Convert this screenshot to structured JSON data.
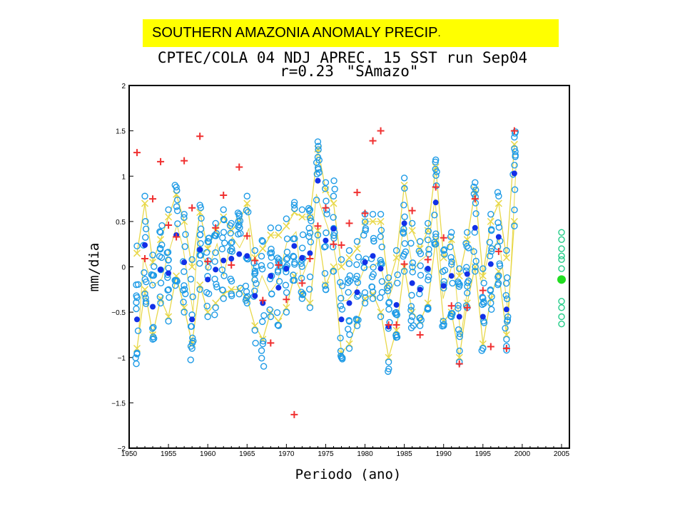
{
  "banner": {
    "text": "SOUTHERN AMAZONIA  ANOMALY PRECIP",
    "suffix": "."
  },
  "colors": {
    "banner_bg": "#ffff00",
    "members": "#1e9be6",
    "ensemble_mean": "#1230e8",
    "observed": "#f03030",
    "spread_lines": "#e8d84a",
    "forecast_members": "#22cc88",
    "forecast_mean": "#22dd22"
  },
  "chart_data": {
    "type": "scatter",
    "title": "CPTEC/COLA 04 NDJ APREC. 15 SST run Sep04",
    "subtitle_r": "r=0.23",
    "subtitle_region": "\"SAmazo\"",
    "xlabel": "Periodo (ano)",
    "ylabel": "mm/dia",
    "xlim": [
      1950,
      2006
    ],
    "ylim": [
      -2,
      2
    ],
    "x_ticks": [
      1950,
      1955,
      1960,
      1965,
      1970,
      1975,
      1980,
      1985,
      1990,
      1995,
      2000,
      2005
    ],
    "y_ticks": [
      2,
      1.5,
      1,
      0.5,
      0,
      -0.5,
      -1,
      -1.5,
      -2
    ],
    "y_tick_labels": [
      "2",
      "1.5",
      "1",
      "0.5",
      "0",
      "−0.5",
      "−1",
      "−1.5",
      "−2"
    ],
    "years": [
      1951,
      1952,
      1953,
      1954,
      1955,
      1956,
      1957,
      1958,
      1959,
      1960,
      1961,
      1962,
      1963,
      1964,
      1965,
      1966,
      1967,
      1968,
      1969,
      1970,
      1971,
      1972,
      1973,
      1974,
      1975,
      1976,
      1977,
      1978,
      1979,
      1980,
      1981,
      1982,
      1983,
      1984,
      1985,
      1986,
      1987,
      1988,
      1989,
      1990,
      1991,
      1992,
      1993,
      1994,
      1995,
      1996,
      1997,
      1998,
      1999
    ],
    "observed": [
      1.26,
      0.09,
      0.75,
      1.16,
      0.46,
      0.33,
      1.17,
      0.65,
      1.44,
      0.06,
      0.43,
      0.79,
      0.02,
      1.1,
      0.34,
      0.07,
      -0.37,
      -0.84,
      0.02,
      -0.36,
      -1.63,
      -0.18,
      0.09,
      0.45,
      0.65,
      0.25,
      0.24,
      0.48,
      0.82,
      0.59,
      1.39,
      1.5,
      -0.64,
      -0.64,
      0.03,
      0.62,
      -0.75,
      0.08,
      0.88,
      0.32,
      -0.43,
      -1.07,
      -0.45,
      0.75,
      -0.26,
      -0.88,
      0.17,
      -0.9,
      1.5
    ],
    "ensemble_mean": [
      -0.58,
      0.24,
      -0.44,
      -0.03,
      -0.07,
      0.35,
      0.05,
      -0.58,
      0.19,
      -0.14,
      -0.03,
      0.07,
      0.09,
      0.14,
      0.12,
      -0.32,
      -0.4,
      -0.1,
      -0.23,
      -0.02,
      0.23,
      0.1,
      0.15,
      0.95,
      0.29,
      0.42,
      -0.58,
      -0.4,
      -0.28,
      0.05,
      0.12,
      -0.02,
      -0.66,
      -0.42,
      0.48,
      -0.18,
      -0.25,
      -0.02,
      0.71,
      -0.21,
      -0.1,
      -0.55,
      -0.08,
      0.43,
      -0.55,
      0.03,
      0.33,
      -0.47,
      1.03
    ],
    "spread_upper": [
      0.15,
      0.7,
      0.05,
      0.3,
      0.55,
      0.8,
      0.5,
      0.0,
      0.6,
      0.2,
      0.4,
      0.55,
      0.4,
      0.5,
      0.7,
      0.1,
      0.2,
      0.35,
      0.35,
      0.45,
      0.6,
      0.55,
      0.55,
      1.3,
      0.85,
      0.7,
      0.0,
      0.1,
      0.2,
      0.5,
      0.5,
      0.5,
      -0.2,
      0.1,
      0.9,
      0.4,
      0.2,
      0.4,
      1.1,
      0.1,
      0.3,
      -0.1,
      0.3,
      0.85,
      -0.1,
      0.5,
      0.7,
      0.1,
      1.35
    ],
    "spread_lower": [
      -0.9,
      -0.25,
      -0.75,
      -0.35,
      -0.55,
      -0.1,
      -0.45,
      -0.85,
      -0.2,
      -0.5,
      -0.4,
      -0.3,
      -0.25,
      -0.25,
      -0.35,
      -0.65,
      -0.8,
      -0.5,
      -0.6,
      -0.45,
      -0.1,
      -0.3,
      -0.4,
      0.4,
      -0.2,
      0.0,
      -0.95,
      -0.85,
      -0.6,
      -0.35,
      -0.3,
      -0.5,
      -1.0,
      -0.7,
      0.0,
      -0.5,
      -0.6,
      -0.4,
      0.3,
      -0.6,
      -0.5,
      -1.0,
      -0.4,
      0.0,
      -0.85,
      -0.35,
      -0.05,
      -0.75,
      0.5
    ],
    "member_radius": [
      0.5,
      0.65,
      0.45,
      0.5,
      0.45,
      0.6,
      0.5,
      0.45,
      0.5,
      0.5,
      0.5,
      0.5,
      0.45,
      0.5,
      0.55,
      0.6,
      0.7,
      0.4,
      0.45,
      0.45,
      0.55,
      0.5,
      0.5,
      0.55,
      0.6,
      0.55,
      0.45,
      0.45,
      0.45,
      0.45,
      0.45,
      0.5,
      0.5,
      0.4,
      0.5,
      0.5,
      0.45,
      0.45,
      0.55,
      0.45,
      0.45,
      0.45,
      0.45,
      0.5,
      0.45,
      0.5,
      0.55,
      0.45,
      0.5
    ],
    "forecast": {
      "year": 2005,
      "members": [
        0.38,
        0.3,
        0.2,
        0.12,
        0.08,
        -0.02,
        -0.38,
        -0.45,
        -0.55,
        -0.63
      ],
      "mean": -0.14
    }
  }
}
